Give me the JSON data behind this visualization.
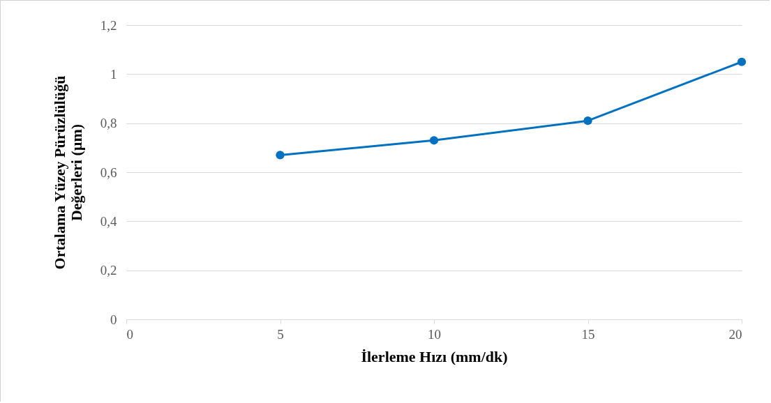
{
  "chart_data": {
    "type": "line",
    "xlabel": "İlerleme Hızı (mm/dk)",
    "ylabel": "Ortalama Yüzey Pürüzlülüğü Değerleri (µm)",
    "x": [
      5,
      10,
      15,
      20
    ],
    "series": [
      {
        "color": "#0070c0",
        "values": [
          0.67,
          0.73,
          0.81,
          1.05
        ]
      }
    ],
    "xlim": [
      0,
      20
    ],
    "xticks": [
      0,
      5,
      10,
      15,
      20
    ],
    "ylim": [
      0,
      1.2
    ],
    "yticks": [
      0,
      {
        "value": 0.2,
        "label": "0,2"
      },
      {
        "value": 0.4,
        "label": "0,4"
      },
      {
        "value": 0.6,
        "label": "0,6"
      },
      {
        "value": 0.8,
        "label": "0,8"
      },
      1,
      {
        "value": 1.2,
        "label": "1,2"
      }
    ],
    "grid": "y",
    "marker": "circle",
    "line_style": "solid"
  }
}
